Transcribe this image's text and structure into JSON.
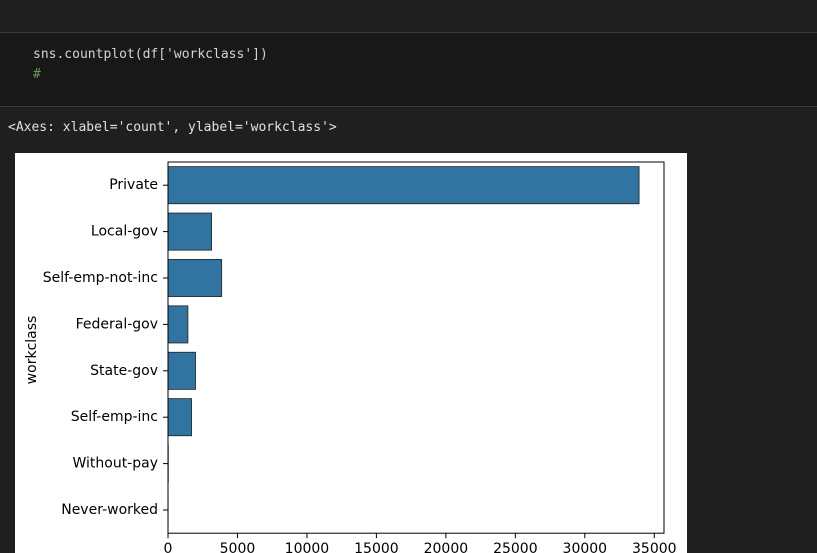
{
  "cell": {
    "code": [
      "sns.countplot(df['workclass'])",
      "#"
    ],
    "output": "<Axes: xlabel='count', ylabel='workclass'>"
  },
  "chart_data": {
    "type": "barh",
    "ylabel": "workclass",
    "categories": [
      "Private",
      "Local-gov",
      "Self-emp-not-inc",
      "Federal-gov",
      "State-gov",
      "Self-emp-inc",
      "Without-pay",
      "Never-worked"
    ],
    "values": [
      33906,
      3136,
      3862,
      1432,
      1981,
      1695,
      21,
      10
    ],
    "color": "#3274a1",
    "xlim": [
      0,
      35700
    ],
    "xticks": [
      0,
      5000,
      10000,
      15000,
      20000,
      25000,
      30000,
      35000
    ]
  }
}
